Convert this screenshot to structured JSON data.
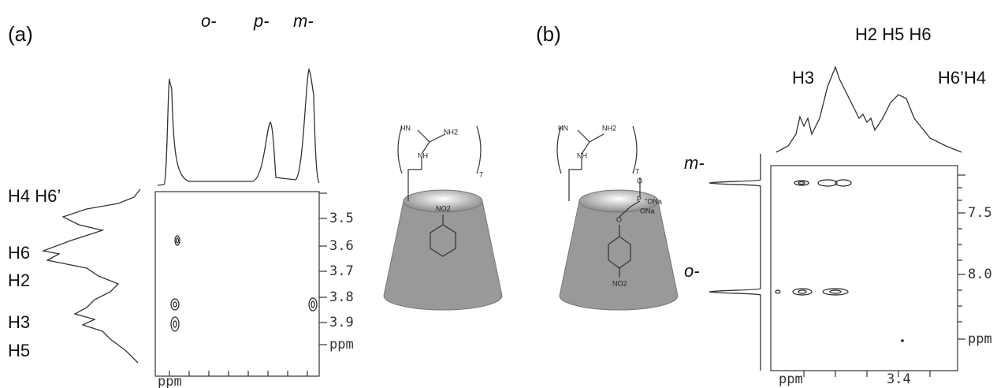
{
  "panel_a": {
    "label": "(a)",
    "top_labels": [
      "o-",
      "p-",
      "m-"
    ],
    "side_labels": [
      "H4 H6’",
      "H6",
      "H2",
      "H3",
      "H5"
    ],
    "axis_ticks": [
      "3.5",
      "3.6",
      "3.7",
      "3.8",
      "3.9",
      "ppm"
    ],
    "bottom_label": "ppm",
    "molecule": {
      "labels": [
        "HN",
        "NH2",
        "NH",
        "7",
        "NO2"
      ]
    }
  },
  "panel_b": {
    "label": "(b)",
    "top_labels": [
      "H2 H5 H6",
      "H3",
      "H6’H4"
    ],
    "side_labels": [
      "m-",
      "o-"
    ],
    "axis_ticks": [
      "7.5",
      "8.0",
      "ppm"
    ],
    "bottom_labels": [
      "ppm",
      "3.4"
    ],
    "molecule": {
      "labels": [
        "HN",
        "NH2",
        "NH",
        "7",
        "O",
        "P",
        "''ONa",
        "ONa",
        "O",
        "NO2"
      ]
    }
  }
}
